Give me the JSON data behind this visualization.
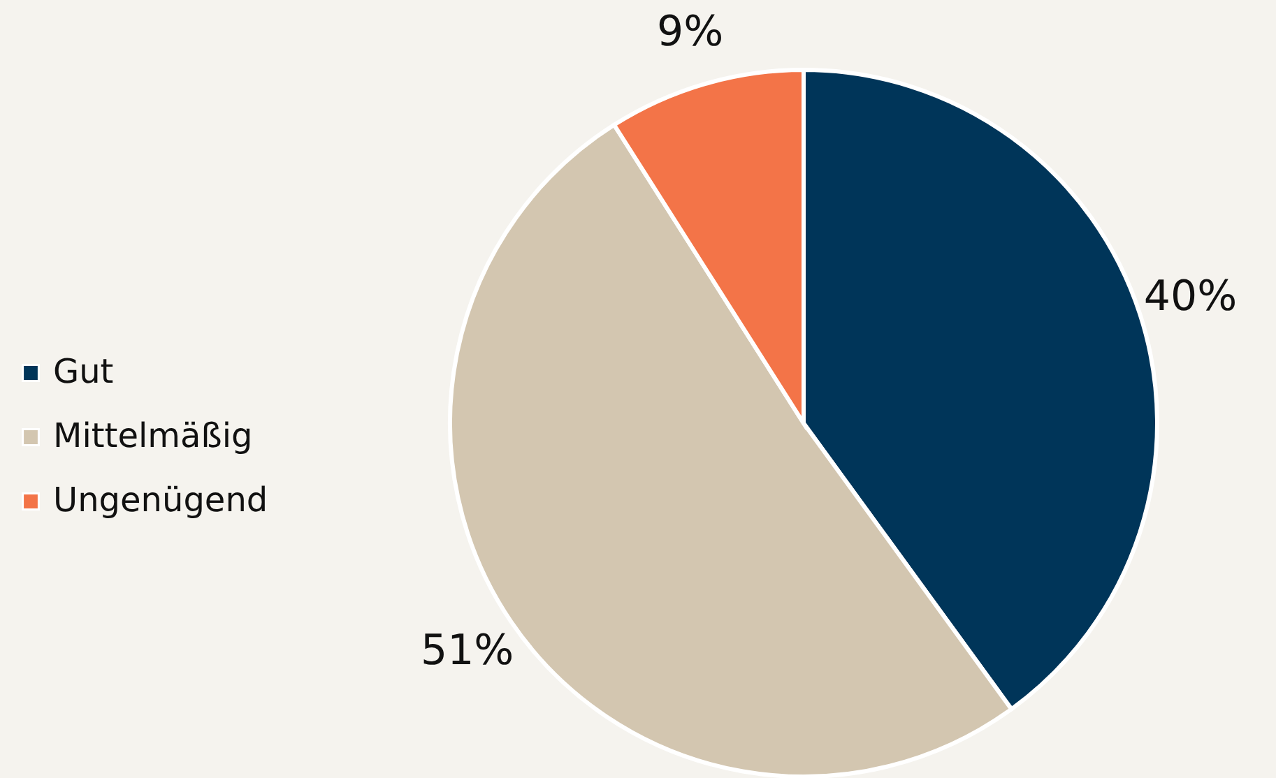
{
  "chart_data": {
    "type": "pie",
    "categories": [
      "Gut",
      "Mittelmäßig",
      "Ungenügend"
    ],
    "values": [
      40,
      51,
      9
    ],
    "colors": [
      "#003559",
      "#d3c6b0",
      "#f37448"
    ],
    "value_labels": [
      "40%",
      "51%",
      "9%"
    ],
    "legend": "left"
  }
}
